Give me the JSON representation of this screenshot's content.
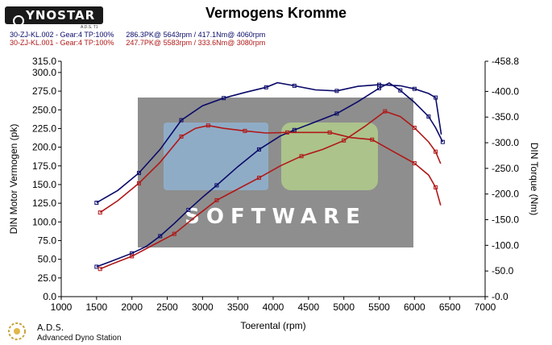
{
  "header": {
    "logo_text": "YNOSTAR",
    "logo_sub": "A.D.S. T1",
    "title": "Vermogens Kromme"
  },
  "runs": [
    {
      "label": "30-ZJ-KL.002 - Gear:4 TP:100%      286.3PK@ 5643rpm / 417.1Nm@ 4060rpm",
      "color": "#0a0a6a"
    },
    {
      "label": "30-ZJ-KL.001 - Gear:4 TP:100%      247.7PK@ 5583rpm / 333.6Nm@ 3080rpm",
      "color": "#b01818"
    }
  ],
  "footer": {
    "title": "A.D.S.",
    "subtitle": "Advanced Dyno Station"
  },
  "watermark": {
    "text": "SOFTWARE",
    "colors": {
      "panel": "#7a7a7a",
      "blue": "#8fb6d8",
      "green": "#b6d48a"
    }
  },
  "chart_data": {
    "type": "line",
    "title": "Vermogens Kromme",
    "xlabel": "Toerental (rpm)",
    "ylabel": "DIN Motor Vermogen (pk)",
    "ylabel_right": "DIN Torque (Nm)",
    "xlim": [
      1000,
      7000
    ],
    "ylim": [
      0,
      315
    ],
    "ylim_right": [
      0,
      458.8
    ],
    "x_ticks": [
      1000,
      1500,
      2000,
      2500,
      3000,
      3500,
      4000,
      4500,
      5000,
      5500,
      6000,
      6500,
      7000
    ],
    "y_ticks": [
      "0.0",
      "25.0",
      "50.0",
      "75.0",
      "100.0",
      "125.0",
      "150.0",
      "175.0",
      "200.0",
      "225.0",
      "250.0",
      "275.0",
      "300.0",
      "315.0"
    ],
    "y_right_ticks": [
      "0.0",
      "50.0",
      "100.0",
      "150.0",
      "200.0",
      "250.0",
      "300.0",
      "350.0",
      "400.0",
      "458.8"
    ],
    "grid": false,
    "series": [
      {
        "name": "30-ZJ-KL.002",
        "quantity": "power",
        "color": "#0a0a6a",
        "x": [
          1500,
          1700,
          2000,
          2200,
          2400,
          2600,
          2800,
          3000,
          3200,
          3500,
          3800,
          4100,
          4300,
          4600,
          4900,
          5200,
          5500,
          5643,
          5800,
          6000,
          6200,
          6300,
          6400
        ],
        "y": [
          40,
          47,
          58,
          67,
          81,
          98,
          116,
          133,
          149,
          174,
          197,
          215,
          223,
          234,
          245,
          261,
          279,
          286,
          276,
          260,
          241,
          226,
          207
        ]
      },
      {
        "name": "30-ZJ-KL.002",
        "quantity": "torque",
        "color": "#0a0a6a",
        "x": [
          1500,
          1800,
          2100,
          2400,
          2700,
          3000,
          3300,
          3600,
          3900,
          4060,
          4300,
          4600,
          4900,
          5200,
          5500,
          5800,
          6000,
          6200,
          6300,
          6380
        ],
        "y": [
          183,
          207,
          241,
          287,
          344,
          372,
          387,
          398,
          408,
          417,
          411,
          403,
          401,
          410,
          413,
          411,
          405,
          396,
          388,
          316
        ]
      },
      {
        "name": "30-ZJ-KL.001",
        "quantity": "power",
        "color": "#b01818",
        "x": [
          1550,
          1700,
          2000,
          2300,
          2600,
          2900,
          3200,
          3500,
          3800,
          4100,
          4400,
          4700,
          5000,
          5300,
          5583,
          5800,
          6000,
          6200,
          6300,
          6370
        ],
        "y": [
          37,
          43,
          54,
          69,
          84,
          107,
          129,
          144,
          159,
          175,
          188,
          197,
          209,
          228,
          248,
          241,
          226,
          207,
          194,
          178
        ]
      },
      {
        "name": "30-ZJ-KL.001",
        "quantity": "torque",
        "color": "#b01818",
        "x": [
          1550,
          1800,
          2100,
          2400,
          2700,
          2900,
          3080,
          3300,
          3600,
          3900,
          4200,
          4500,
          4800,
          5100,
          5400,
          5700,
          6000,
          6200,
          6300,
          6370
        ],
        "y": [
          164,
          187,
          221,
          262,
          312,
          328,
          333.6,
          328,
          323,
          319,
          320,
          320,
          320,
          310,
          306,
          283,
          260,
          237,
          213,
          178
        ]
      }
    ]
  }
}
